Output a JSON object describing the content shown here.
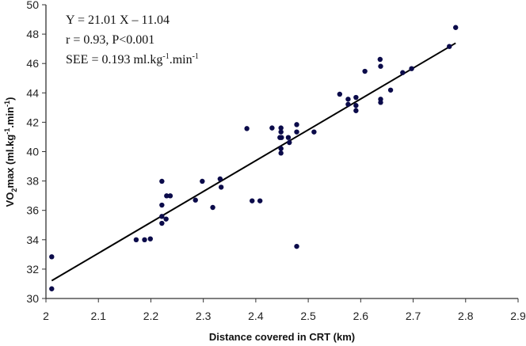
{
  "chart_data": {
    "type": "scatter",
    "xlabel": "Distance covered in CRT (km)",
    "ylabel_parts": {
      "a": "VO",
      "sub": "2",
      "b": "max (ml.kg",
      "sup1": "-1",
      "c": ".min",
      "sup2": "-1",
      "d": ")"
    },
    "xlim": [
      2,
      2.9
    ],
    "ylim": [
      30,
      50
    ],
    "xticks": [
      "2",
      "2.1",
      "2.2",
      "2.3",
      "2.4",
      "2.5",
      "2.6",
      "2.7",
      "2.8",
      "2.9"
    ],
    "yticks": [
      "30",
      "32",
      "34",
      "36",
      "38",
      "40",
      "42",
      "44",
      "46",
      "48",
      "50"
    ],
    "grid": false,
    "marker_color": "#0b0b4a",
    "line_color": "#000000",
    "annotation": {
      "equation": "Y = 21.01 X – 11.04",
      "stats": "r = 0.93, P<0.001",
      "see_a": "SEE = 0.193 ml.kg",
      "see_sup1": "-1",
      "see_b": ".min",
      "see_sup2": "-1"
    },
    "regression": {
      "slope": 21.01,
      "intercept": -11.04,
      "x_range": [
        2.011,
        2.781
      ]
    },
    "points": [
      [
        2.011,
        32.84
      ],
      [
        2.011,
        30.66
      ],
      [
        2.172,
        34.0
      ],
      [
        2.188,
        34.0
      ],
      [
        2.199,
        34.06
      ],
      [
        2.221,
        37.98
      ],
      [
        2.221,
        36.36
      ],
      [
        2.221,
        35.59
      ],
      [
        2.221,
        35.12
      ],
      [
        2.229,
        35.41
      ],
      [
        2.23,
        36.99
      ],
      [
        2.237,
        36.99
      ],
      [
        2.285,
        36.7
      ],
      [
        2.298,
        37.98
      ],
      [
        2.318,
        36.2
      ],
      [
        2.332,
        38.14
      ],
      [
        2.334,
        37.58
      ],
      [
        2.383,
        41.57
      ],
      [
        2.393,
        36.65
      ],
      [
        2.408,
        36.65
      ],
      [
        2.431,
        41.61
      ],
      [
        2.448,
        41.61
      ],
      [
        2.448,
        41.34
      ],
      [
        2.446,
        40.96
      ],
      [
        2.449,
        40.96
      ],
      [
        2.448,
        40.21
      ],
      [
        2.448,
        39.9
      ],
      [
        2.462,
        40.96
      ],
      [
        2.464,
        40.62
      ],
      [
        2.478,
        41.84
      ],
      [
        2.478,
        41.34
      ],
      [
        2.478,
        33.55
      ],
      [
        2.511,
        41.34
      ],
      [
        2.56,
        43.91
      ],
      [
        2.576,
        43.57
      ],
      [
        2.576,
        43.22
      ],
      [
        2.591,
        43.69
      ],
      [
        2.591,
        43.14
      ],
      [
        2.591,
        42.79
      ],
      [
        2.608,
        45.47
      ],
      [
        2.637,
        46.28
      ],
      [
        2.638,
        45.81
      ],
      [
        2.638,
        43.57
      ],
      [
        2.638,
        43.35
      ],
      [
        2.657,
        44.19
      ],
      [
        2.68,
        45.38
      ],
      [
        2.697,
        45.65
      ],
      [
        2.769,
        47.16
      ],
      [
        2.781,
        48.45
      ]
    ]
  }
}
